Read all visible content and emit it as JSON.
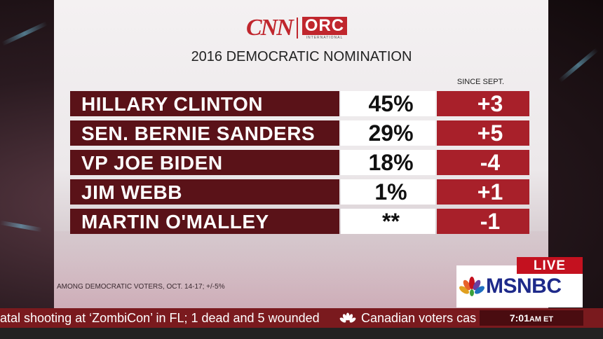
{
  "logo": {
    "cnn": "CNN",
    "orc": "ORC",
    "orc_sub": "INTERNATIONAL"
  },
  "title": "2016 DEMOCRATIC NOMINATION",
  "since_header": "SINCE SEPT.",
  "rows": [
    {
      "name": "HILLARY CLINTON",
      "pct": "45%",
      "change": "+3"
    },
    {
      "name": "SEN. BERNIE SANDERS",
      "pct": "29%",
      "change": "+5"
    },
    {
      "name": "VP JOE BIDEN",
      "pct": "18%",
      "change": "-4"
    },
    {
      "name": "JIM WEBB",
      "pct": "1%",
      "change": "+1"
    },
    {
      "name": "MARTIN O'MALLEY",
      "pct": "**",
      "change": "-1"
    }
  ],
  "source": "AMONG DEMOCRATIC VOTERS, OCT. 14-17; +/-5%",
  "live": "LIVE",
  "network": "MSNBC",
  "ticker": {
    "text1": "atal shooting at ‘ZombiCon’ in FL; 1 dead and 5 wounded",
    "text2": "Canadian voters cas",
    "time": "7:01",
    "time_suffix": "AM ET"
  },
  "colors": {
    "name_bg": "#5a1218",
    "change_bg": "#a8202a",
    "brand_red": "#c0262d",
    "msnbc_blue": "#1e2a8a"
  }
}
